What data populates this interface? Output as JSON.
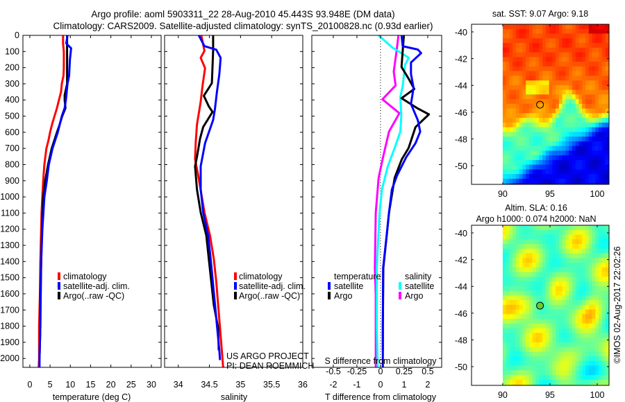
{
  "header": {
    "title_line1": "Argo profile: aoml 5903311_22 28-Aug-2010 45.443S 93.948E (DM data)",
    "title_line2": "Climatology: CARS2009. Satellite-adjusted climatology: synTS_20100828.nc (0.93d earlier)"
  },
  "credits": {
    "project": "US ARGO PROJECT",
    "pi": "PI: DEAN ROEMMICH",
    "imos_stamp": "©IMOS 02-Aug-2017 22:02:26"
  },
  "colors": {
    "climatology": "#ff0000",
    "satellite_adj": "#0000ff",
    "argo": "#000000",
    "salinity_satellite": "#00ffff",
    "salinity_argo": "#ff00ff"
  },
  "chart_data": [
    {
      "type": "line",
      "id": "temperature",
      "xlabel": "temperature (deg C)",
      "ylabel": "",
      "xlim": [
        -1.7,
        32.4
      ],
      "ylim": [
        2055,
        0
      ],
      "xticks": [
        "0",
        "5",
        "10",
        "15",
        "20",
        "25",
        "30"
      ],
      "xtick_values": [
        0,
        5,
        10,
        15,
        20,
        25,
        30
      ],
      "yticks": [
        "0",
        "100",
        "200",
        "300",
        "400",
        "500",
        "600",
        "700",
        "800",
        "900",
        "1000",
        "1100",
        "1200",
        "1300",
        "1400",
        "1500",
        "1600",
        "1700",
        "1800",
        "1900",
        "2000"
      ],
      "ytick_values": [
        0,
        100,
        200,
        300,
        400,
        500,
        600,
        700,
        800,
        900,
        1000,
        1100,
        1200,
        1300,
        1400,
        1500,
        1600,
        1700,
        1800,
        1900,
        2000
      ],
      "legend": [
        "climatology",
        "satellite-adj. clim.",
        "Argo(..raw -QC)"
      ],
      "legend_placement": "lower-center",
      "series": [
        {
          "name": "climatology",
          "color": "#ff0000",
          "points": [
            [
              0,
              8.2
            ],
            [
              50,
              8.2
            ],
            [
              100,
              8.4
            ],
            [
              200,
              8.4
            ],
            [
              250,
              8.3
            ],
            [
              300,
              7.9
            ],
            [
              350,
              7.7
            ],
            [
              400,
              7.2
            ],
            [
              450,
              6.7
            ],
            [
              500,
              6.1
            ],
            [
              550,
              5.5
            ],
            [
              600,
              5.0
            ],
            [
              650,
              4.6
            ],
            [
              700,
              4.1
            ],
            [
              800,
              3.6
            ],
            [
              900,
              3.3
            ],
            [
              1000,
              3.1
            ],
            [
              1100,
              2.9
            ],
            [
              1200,
              2.8
            ],
            [
              1300,
              2.7
            ],
            [
              1400,
              2.6
            ],
            [
              1600,
              2.5
            ],
            [
              1800,
              2.3
            ],
            [
              2000,
              2.3
            ],
            [
              2055,
              2.2
            ]
          ]
        },
        {
          "name": "Argo(..raw -QC)",
          "color": "#000000",
          "points": [
            [
              0,
              9.2
            ],
            [
              80,
              9.2
            ],
            [
              150,
              9.2
            ],
            [
              300,
              9.2
            ],
            [
              370,
              8.6
            ],
            [
              400,
              8.6
            ],
            [
              450,
              8.8
            ],
            [
              500,
              8.0
            ],
            [
              550,
              7.4
            ],
            [
              600,
              6.7
            ],
            [
              700,
              5.4
            ],
            [
              800,
              4.5
            ],
            [
              900,
              3.8
            ],
            [
              1000,
              3.3
            ],
            [
              1200,
              3.0
            ],
            [
              1400,
              2.8
            ],
            [
              1600,
              2.6
            ],
            [
              1800,
              2.6
            ],
            [
              2000,
              2.4
            ]
          ]
        },
        {
          "name": "satellite-adj. clim.",
          "color": "#0000ff",
          "points": [
            [
              0,
              9.3
            ],
            [
              50,
              9.0
            ],
            [
              80,
              10.2
            ],
            [
              150,
              9.9
            ],
            [
              250,
              9.7
            ],
            [
              300,
              9.3
            ],
            [
              400,
              8.9
            ],
            [
              450,
              8.6
            ],
            [
              500,
              7.9
            ],
            [
              550,
              7.4
            ],
            [
              600,
              6.9
            ],
            [
              700,
              5.6
            ],
            [
              800,
              4.7
            ],
            [
              900,
              4.2
            ],
            [
              1000,
              3.6
            ],
            [
              1200,
              3.1
            ],
            [
              1400,
              2.8
            ],
            [
              1600,
              2.7
            ],
            [
              1800,
              2.6
            ],
            [
              2000,
              2.4
            ],
            [
              2055,
              2.4
            ]
          ]
        }
      ]
    },
    {
      "type": "line",
      "id": "salinity",
      "xlabel": "salinity",
      "ylabel": "",
      "xlim": [
        33.78,
        36.0
      ],
      "ylim": [
        2055,
        0
      ],
      "xticks": [
        "34",
        "34.5",
        "35",
        "35.5",
        "36"
      ],
      "xtick_values": [
        34,
        34.5,
        35,
        35.5,
        36
      ],
      "legend": [
        "climatology",
        "satellite-adj. clim.",
        "Argo(..raw -QC)"
      ],
      "legend_placement": "lower-right",
      "series": [
        {
          "name": "climatology",
          "color": "#ff0000",
          "points": [
            [
              0,
              34.37
            ],
            [
              96,
              34.42
            ],
            [
              139,
              34.36
            ],
            [
              203,
              34.43
            ],
            [
              310,
              34.39
            ],
            [
              410,
              34.36
            ],
            [
              553,
              34.3
            ],
            [
              667,
              34.28
            ],
            [
              767,
              34.27
            ],
            [
              867,
              34.32
            ],
            [
              981,
              34.37
            ],
            [
              1096,
              34.42
            ],
            [
              1239,
              34.51
            ],
            [
              1381,
              34.57
            ],
            [
              1524,
              34.61
            ],
            [
              1667,
              34.64
            ],
            [
              1810,
              34.67
            ],
            [
              1953,
              34.7
            ],
            [
              2055,
              34.72
            ]
          ]
        },
        {
          "name": "Argo(..raw -QC)",
          "color": "#000000",
          "points": [
            [
              0,
              34.56
            ],
            [
              96,
              34.56
            ],
            [
              296,
              34.54
            ],
            [
              374,
              34.41
            ],
            [
              439,
              34.49
            ],
            [
              474,
              34.55
            ],
            [
              567,
              34.4
            ],
            [
              639,
              34.35
            ],
            [
              753,
              34.3
            ],
            [
              810,
              34.27
            ],
            [
              953,
              34.3
            ],
            [
              1096,
              34.36
            ],
            [
              1239,
              34.45
            ],
            [
              1381,
              34.49
            ],
            [
              1667,
              34.57
            ],
            [
              1810,
              34.64
            ],
            [
              1950,
              34.65
            ]
          ]
        },
        {
          "name": "satellite-adj. clim.",
          "color": "#0000ff",
          "points": [
            [
              0,
              34.33
            ],
            [
              67,
              34.42
            ],
            [
              89,
              34.61
            ],
            [
              139,
              34.68
            ],
            [
              239,
              34.66
            ],
            [
              353,
              34.62
            ],
            [
              453,
              34.59
            ],
            [
              524,
              34.56
            ],
            [
              667,
              34.43
            ],
            [
              810,
              34.36
            ],
            [
              953,
              34.36
            ],
            [
              1096,
              34.4
            ],
            [
              1239,
              34.48
            ],
            [
              1381,
              34.52
            ],
            [
              1667,
              34.59
            ],
            [
              1953,
              34.66
            ],
            [
              2010,
              34.67
            ]
          ]
        }
      ]
    },
    {
      "type": "line",
      "id": "difference",
      "xlabel": "T difference from climatology",
      "x2label": "S difference from climatology",
      "ylabel": "",
      "xlim": [
        -2.91,
        2.59
      ],
      "x2lim": [
        -0.7275,
        0.6475
      ],
      "ylim": [
        2055,
        0
      ],
      "xticks": [
        "-2",
        "-1",
        "0",
        "1",
        "2"
      ],
      "xtick_values": [
        -2,
        -1,
        0,
        1,
        2
      ],
      "x2ticks": [
        "-0.5",
        "-0.25",
        "0",
        "0.25",
        "0.5"
      ],
      "x2tick_values": [
        -0.5,
        -0.25,
        0,
        0.25,
        0.5
      ],
      "legend_groups": [
        {
          "title": "temperature",
          "items": [
            "satellite",
            "Argo"
          ]
        },
        {
          "title": "salinity",
          "items": [
            "satellite",
            "Argo"
          ]
        }
      ],
      "legend_placement": "lower-center",
      "series": [
        {
          "name": "salinity Argo",
          "axis": "S",
          "color": "#ff00ff",
          "points": [
            [
              0,
              0.19
            ],
            [
              96,
              0.17
            ],
            [
              225,
              0.14
            ],
            [
              310,
              0.16
            ],
            [
              396,
              0.02
            ],
            [
              482,
              0.2
            ],
            [
              596,
              0.09
            ],
            [
              754,
              0.027
            ],
            [
              882,
              -0.02
            ],
            [
              1097,
              -0.05
            ],
            [
              1440,
              -0.06
            ],
            [
              1600,
              -0.05
            ],
            [
              1800,
              -0.05
            ],
            [
              2055,
              -0.05
            ]
          ]
        },
        {
          "name": "salinity satellite",
          "axis": "S",
          "color": "#00ffff",
          "points": [
            [
              0,
              -0.02
            ],
            [
              75,
              0.125
            ],
            [
              139,
              0.3
            ],
            [
              182,
              0.26
            ],
            [
              310,
              0.236
            ],
            [
              382,
              0.21
            ],
            [
              496,
              0.22
            ],
            [
              596,
              0.21
            ],
            [
              697,
              0.15
            ],
            [
              811,
              0.077
            ],
            [
              954,
              0.015
            ],
            [
              1097,
              -0.01
            ],
            [
              1440,
              -0.04
            ],
            [
              1800,
              -0.04
            ],
            [
              2055,
              -0.03
            ]
          ]
        },
        {
          "name": "temperature Argo",
          "axis": "T",
          "color": "#000000",
          "points": [
            [
              0,
              0.99
            ],
            [
              96,
              0.94
            ],
            [
              196,
              0.89
            ],
            [
              268,
              1.19
            ],
            [
              332,
              1.43
            ],
            [
              389,
              0.89
            ],
            [
              453,
              1.58
            ],
            [
              489,
              2.05
            ],
            [
              568,
              1.48
            ],
            [
              697,
              1.19
            ],
            [
              768,
              0.9
            ],
            [
              882,
              0.6
            ],
            [
              1097,
              0.36
            ],
            [
              1240,
              0.26
            ],
            [
              1440,
              0.12
            ],
            [
              1800,
              0.1
            ],
            [
              1950,
              0.1
            ]
          ]
        },
        {
          "name": "temperature satellite",
          "axis": "T",
          "color": "#0000ff",
          "points": [
            [
              0,
              0.89
            ],
            [
              67,
              0.94
            ],
            [
              88,
              1.58
            ],
            [
              110,
              1.72
            ],
            [
              168,
              1.29
            ],
            [
              239,
              1.29
            ],
            [
              325,
              1.4
            ],
            [
              425,
              1.29
            ],
            [
              525,
              1.58
            ],
            [
              596,
              1.68
            ],
            [
              668,
              1.48
            ],
            [
              754,
              1.09
            ],
            [
              868,
              0.7
            ],
            [
              954,
              0.48
            ],
            [
              1097,
              0.36
            ],
            [
              1240,
              0.26
            ],
            [
              1440,
              0.11
            ],
            [
              1800,
              0.1
            ],
            [
              2055,
              0.1
            ]
          ]
        }
      ]
    },
    {
      "type": "heatmap",
      "id": "sst_map",
      "title": "sat. SST: 9.07 Argo: 9.18",
      "xlim": [
        86.7,
        101.25
      ],
      "ylim": [
        -51.4,
        -39.43
      ],
      "data_lon_start": 90,
      "xticks": [
        "90",
        "95",
        "100"
      ],
      "xtick_values": [
        90,
        95,
        100
      ],
      "yticks": [
        "-40",
        "-42",
        "-44",
        "-46",
        "-48",
        "-50"
      ],
      "ytick_values": [
        -40,
        -42,
        -44,
        -46,
        -48,
        -50
      ],
      "marker": {
        "lon": 93.948,
        "lat": -45.443
      }
    },
    {
      "type": "heatmap",
      "id": "sla_map",
      "title": "Altim. SLA: 0.16",
      "subtitle": "Argo h1000: 0.074 h2000: NaN",
      "xlim": [
        86.7,
        101.25
      ],
      "ylim": [
        -51.4,
        -39.43
      ],
      "data_lon_start": 90,
      "xticks": [
        "90",
        "95",
        "100"
      ],
      "xtick_values": [
        90,
        95,
        100
      ],
      "yticks": [
        "-40",
        "-42",
        "-44",
        "-46",
        "-48",
        "-50"
      ],
      "ytick_values": [
        -40,
        -42,
        -44,
        -46,
        -48,
        -50
      ],
      "marker": {
        "lon": 93.948,
        "lat": -45.443
      }
    }
  ]
}
